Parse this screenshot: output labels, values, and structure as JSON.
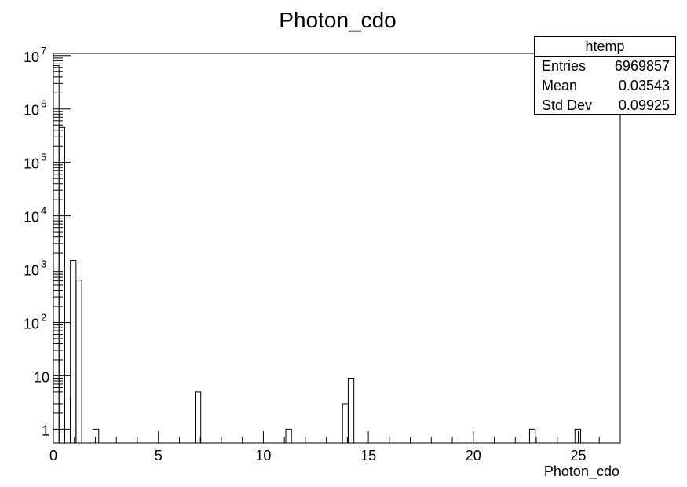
{
  "chart_data": {
    "type": "bar",
    "title": "Photon_cdo",
    "xlabel": "Photon_cdo",
    "ylabel": "",
    "xlim": [
      0,
      27
    ],
    "ylim": [
      0.55,
      11000000
    ],
    "yscale": "log",
    "grid": false,
    "x_ticks": [
      0,
      5,
      10,
      15,
      20,
      25
    ],
    "x_tick_labels": [
      "0",
      "5",
      "10",
      "15",
      "20",
      "25"
    ],
    "y_tick_labels": [
      {
        "value": 1,
        "base": "1",
        "exp": ""
      },
      {
        "value": 10,
        "base": "10",
        "exp": ""
      },
      {
        "value": 100,
        "base": "10",
        "exp": "2"
      },
      {
        "value": 1000,
        "base": "10",
        "exp": "3"
      },
      {
        "value": 10000,
        "base": "10",
        "exp": "4"
      },
      {
        "value": 100000,
        "base": "10",
        "exp": "5"
      },
      {
        "value": 1000000,
        "base": "10",
        "exp": "6"
      },
      {
        "value": 10000000,
        "base": "10",
        "exp": "7"
      }
    ],
    "bins": [
      {
        "x0": 0.0,
        "x1": 0.27,
        "value": 6500000
      },
      {
        "x0": 0.27,
        "x1": 0.54,
        "value": 450000
      },
      {
        "x0": 0.54,
        "x1": 0.81,
        "value": 4
      },
      {
        "x0": 0.81,
        "x1": 1.08,
        "value": 1450
      },
      {
        "x0": 1.08,
        "x1": 1.35,
        "value": 620
      },
      {
        "x0": 1.89,
        "x1": 2.16,
        "value": 1
      },
      {
        "x0": 6.75,
        "x1": 7.02,
        "value": 5
      },
      {
        "x0": 11.07,
        "x1": 11.34,
        "value": 1
      },
      {
        "x0": 13.77,
        "x1": 14.04,
        "value": 3
      },
      {
        "x0": 14.04,
        "x1": 14.31,
        "value": 9
      },
      {
        "x0": 22.68,
        "x1": 22.95,
        "value": 1
      },
      {
        "x0": 24.84,
        "x1": 25.11,
        "value": 1
      }
    ]
  },
  "stats": {
    "name": "htemp",
    "entries_label": "Entries",
    "entries_value": "6969857",
    "mean_label": "Mean",
    "mean_value": "0.03543",
    "stddev_label": "Std Dev",
    "stddev_value": "0.09925"
  }
}
